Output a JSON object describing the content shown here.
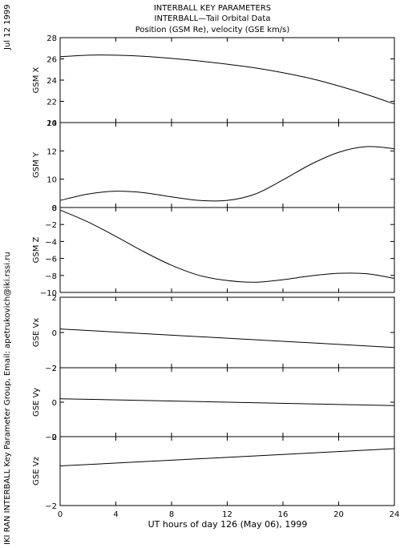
{
  "header": {
    "line1": "INTERBALL KEY PARAMETERS",
    "line2": "INTERBALL—Tail Orbital Data",
    "line3": "Position (GSM Re), velocity (GSE km/s)"
  },
  "side_left": {
    "date": "Jul 12 1999",
    "credit": "IKI RAN INTERBALL Key Parameter Group, Email: apetrukovich@iki.rssi.ru"
  },
  "chart_data": {
    "type": "line",
    "x": {
      "label": "UT hours of day 126 (May 06), 1999",
      "range": [
        0,
        24
      ],
      "ticks": [
        0,
        4,
        8,
        12,
        16,
        20,
        24
      ]
    },
    "panels": [
      {
        "ylabel": "GSM X",
        "ylim": [
          20,
          28
        ],
        "yticks": [
          20,
          22,
          24,
          26,
          28
        ],
        "x": [
          0,
          2,
          4,
          6,
          8,
          10,
          12,
          14,
          16,
          18,
          20,
          22,
          24
        ],
        "values": [
          26.2,
          26.35,
          26.35,
          26.25,
          26.05,
          25.8,
          25.5,
          25.15,
          24.7,
          24.15,
          23.45,
          22.65,
          21.75
        ]
      },
      {
        "ylabel": "GSM Y",
        "ylim": [
          8,
          14
        ],
        "yticks": [
          8,
          10,
          12,
          14
        ],
        "x": [
          0,
          2,
          4,
          6,
          8,
          10,
          12,
          14,
          16,
          18,
          20,
          22,
          24
        ],
        "values": [
          8.5,
          8.95,
          9.15,
          9.05,
          8.75,
          8.5,
          8.5,
          8.95,
          9.95,
          11.05,
          11.9,
          12.3,
          12.15
        ]
      },
      {
        "ylabel": "GSM Z",
        "ylim": [
          -10,
          0
        ],
        "yticks": [
          -10,
          -8,
          -6,
          -4,
          -2,
          0
        ],
        "x": [
          0,
          2,
          4,
          6,
          8,
          10,
          12,
          14,
          16,
          18,
          20,
          22,
          24
        ],
        "values": [
          -0.3,
          -1.7,
          -3.4,
          -5.2,
          -6.8,
          -8.0,
          -8.6,
          -8.8,
          -8.5,
          -8.05,
          -7.75,
          -7.8,
          -8.35
        ]
      },
      {
        "ylabel": "GSE Vx",
        "ylim": [
          -2,
          2
        ],
        "yticks": [
          -2,
          0,
          2
        ],
        "x": [
          0,
          24
        ],
        "values": [
          0.2,
          -0.85
        ]
      },
      {
        "ylabel": "GSE Vy",
        "ylim": [
          -2,
          2
        ],
        "yticks": [
          -2,
          0,
          2
        ],
        "x": [
          0,
          24
        ],
        "values": [
          0.2,
          -0.2
        ]
      },
      {
        "ylabel": "GSE Vz",
        "ylim": [
          -2,
          0
        ],
        "yticks": [
          -2,
          0
        ],
        "x": [
          0,
          24
        ],
        "values": [
          -0.85,
          -0.35
        ]
      }
    ]
  }
}
